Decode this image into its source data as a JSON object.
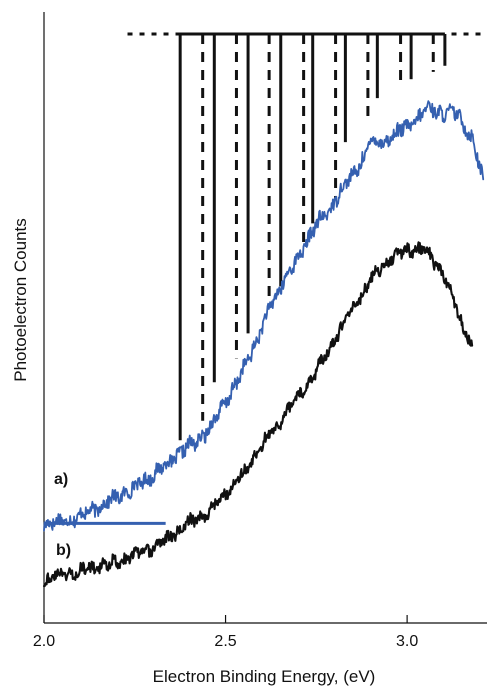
{
  "chart_data": {
    "type": "line",
    "title": "",
    "xlabel": "Electron Binding Energy, (eV)",
    "ylabel": "Photoelectron Counts",
    "xlim": [
      2.0,
      3.22
    ],
    "ylim": [
      0.0,
      1.0
    ],
    "xticks": [
      2.0,
      2.5,
      3.0
    ],
    "xtick_labels": [
      "2.0",
      "2.5",
      "3.0"
    ],
    "grid": false,
    "legend": "none",
    "colors": {
      "trace_a": "#3560b0",
      "trace_b": "#111111",
      "axis": "#111111",
      "stick_spectrum": "#111111"
    },
    "trace_labels": {
      "a": "a)",
      "b": "b)"
    },
    "series": [
      {
        "id": "a",
        "x": [
          2.0,
          2.05,
          2.1,
          2.15,
          2.2,
          2.25,
          2.3,
          2.35,
          2.38,
          2.42,
          2.46,
          2.5,
          2.54,
          2.58,
          2.62,
          2.66,
          2.7,
          2.74,
          2.78,
          2.82,
          2.86,
          2.9,
          2.94,
          2.98,
          3.02,
          3.06,
          3.1,
          3.14,
          3.18,
          3.21
        ],
        "y": [
          0.163,
          0.166,
          0.175,
          0.19,
          0.206,
          0.222,
          0.243,
          0.265,
          0.282,
          0.296,
          0.322,
          0.362,
          0.403,
          0.455,
          0.512,
          0.561,
          0.596,
          0.645,
          0.67,
          0.711,
          0.74,
          0.787,
          0.789,
          0.805,
          0.82,
          0.844,
          0.834,
          0.833,
          0.792,
          0.722
        ]
      },
      {
        "id": "b",
        "x": [
          2.0,
          2.05,
          2.1,
          2.15,
          2.2,
          2.25,
          2.3,
          2.35,
          2.4,
          2.45,
          2.5,
          2.55,
          2.6,
          2.65,
          2.7,
          2.75,
          2.8,
          2.85,
          2.9,
          2.95,
          3.0,
          3.05,
          3.1,
          3.15,
          3.18
        ],
        "y": [
          0.071,
          0.08,
          0.085,
          0.092,
          0.1,
          0.111,
          0.123,
          0.142,
          0.164,
          0.18,
          0.213,
          0.244,
          0.291,
          0.329,
          0.371,
          0.412,
          0.462,
          0.514,
          0.561,
          0.595,
          0.611,
          0.611,
          0.573,
          0.491,
          0.452
        ]
      }
    ],
    "baseline_a": {
      "x": [
        2.0,
        2.335
      ],
      "y": [
        0.163,
        0.163
      ]
    },
    "stick_spectrum": {
      "top_y": 0.964,
      "dotted_x_range": [
        2.23,
        3.22
      ],
      "solid_x": [
        2.375,
        2.469,
        2.562,
        2.652,
        2.74,
        2.83,
        2.918,
        3.011,
        3.104
      ],
      "solid_bottom_y": [
        0.299,
        0.394,
        0.474,
        0.551,
        0.654,
        0.787,
        0.859,
        0.89,
        0.912
      ],
      "dashed_x": [
        2.437,
        2.53,
        2.62,
        2.715,
        2.803,
        2.892,
        2.982,
        3.072
      ],
      "dashed_bottom_y": [
        0.331,
        0.433,
        0.518,
        0.618,
        0.694,
        0.821,
        0.879,
        0.902
      ]
    }
  }
}
